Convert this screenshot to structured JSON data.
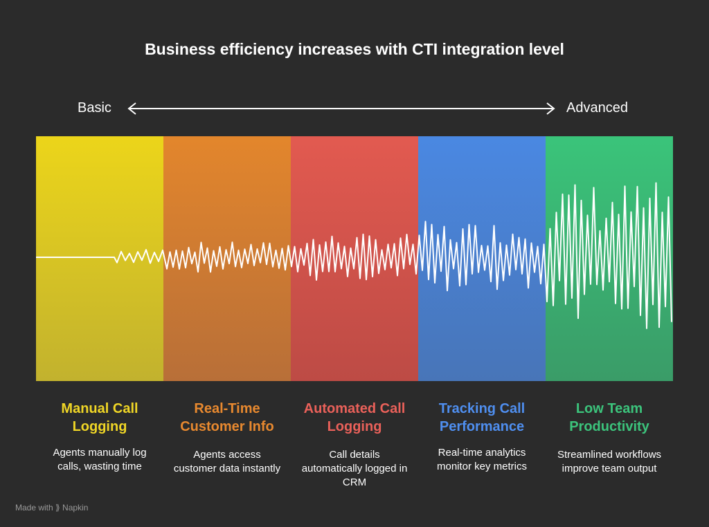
{
  "header": {
    "title": "Business efficiency increases with CTI integration level"
  },
  "scale": {
    "left": "Basic",
    "right": "Advanced"
  },
  "stages": [
    {
      "title": "Manual Call Logging",
      "description": "Agents manually log calls, wasting time"
    },
    {
      "title": "Real-Time Customer Info",
      "description": "Agents access customer data instantly"
    },
    {
      "title": "Automated Call Logging",
      "description": "Call details automatically logged in CRM"
    },
    {
      "title": "Tracking Call Performance",
      "description": "Real-time analytics monitor key metrics"
    },
    {
      "title": "Low Team Productivity",
      "description": "Streamlined workflows improve team output"
    }
  ],
  "footer": {
    "prefix": "Made with",
    "brand": "Napkin"
  }
}
